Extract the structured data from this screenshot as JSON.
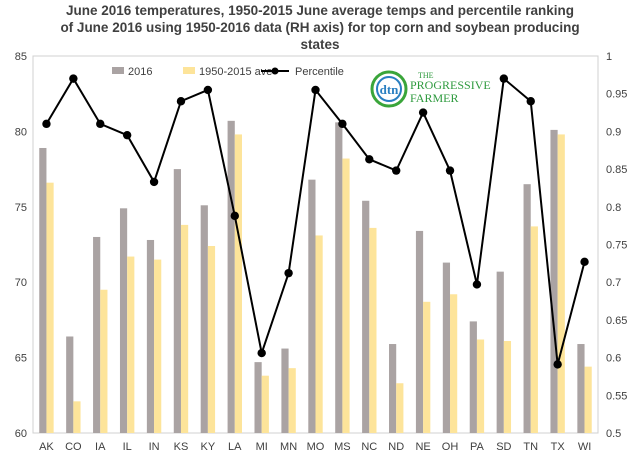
{
  "chart_data": {
    "type": "bar",
    "title_lines": [
      "June 2016 temperatures, 1950-2015 June average temps and percentile ranking",
      "of June 2016 using 1950-2016 data (RH axis) for top corn and soybean producing",
      "states"
    ],
    "categories": [
      "AK",
      "CO",
      "IA",
      "IL",
      "IN",
      "KS",
      "KY",
      "LA",
      "MI",
      "MN",
      "MO",
      "MS",
      "NC",
      "ND",
      "NE",
      "OH",
      "PA",
      "SD",
      "TN",
      "TX",
      "WI"
    ],
    "series": [
      {
        "name": "2016",
        "kind": "bar",
        "axis": "left",
        "color": "#aaa3a3",
        "values": [
          78.9,
          66.4,
          73.0,
          74.9,
          72.8,
          77.5,
          75.1,
          80.7,
          64.7,
          65.6,
          76.8,
          80.6,
          75.4,
          65.9,
          73.4,
          71.3,
          67.4,
          70.7,
          76.5,
          80.1,
          65.9
        ]
      },
      {
        "name": "1950-2015 ave",
        "kind": "bar",
        "axis": "left",
        "color": "#fde49a",
        "values": [
          76.6,
          62.1,
          69.5,
          71.7,
          71.5,
          73.8,
          72.4,
          79.8,
          63.8,
          64.3,
          73.1,
          78.2,
          73.6,
          63.3,
          68.7,
          69.2,
          66.2,
          66.1,
          73.7,
          79.8,
          64.4
        ]
      },
      {
        "name": "Percentile",
        "kind": "line",
        "axis": "right",
        "color": "#000000",
        "values": [
          0.91,
          0.97,
          0.91,
          0.895,
          0.833,
          0.94,
          0.955,
          0.788,
          0.606,
          0.712,
          0.955,
          0.91,
          0.863,
          0.848,
          0.925,
          0.848,
          0.697,
          0.97,
          0.94,
          0.591,
          0.727
        ]
      }
    ],
    "y_left": {
      "min": 60,
      "max": 85,
      "ticks": [
        60,
        65,
        70,
        75,
        80,
        85
      ]
    },
    "y_right": {
      "min": 0.5,
      "max": 1.0,
      "ticks": [
        "0.5",
        "0.55",
        "0.6",
        "0.65",
        "0.7",
        "0.75",
        "0.8",
        "0.85",
        "0.9",
        "0.95",
        "1"
      ]
    },
    "grid": false,
    "legend_position": "top"
  },
  "logo": {
    "dtn": "dtn",
    "the": "THE",
    "progressive": "PROGRESSIVE",
    "farmer": "FARMER",
    "colors": {
      "dtn_green": "#3aa53a",
      "dtn_blue": "#2a7fc1",
      "text_green": "#2e9a3e"
    }
  }
}
